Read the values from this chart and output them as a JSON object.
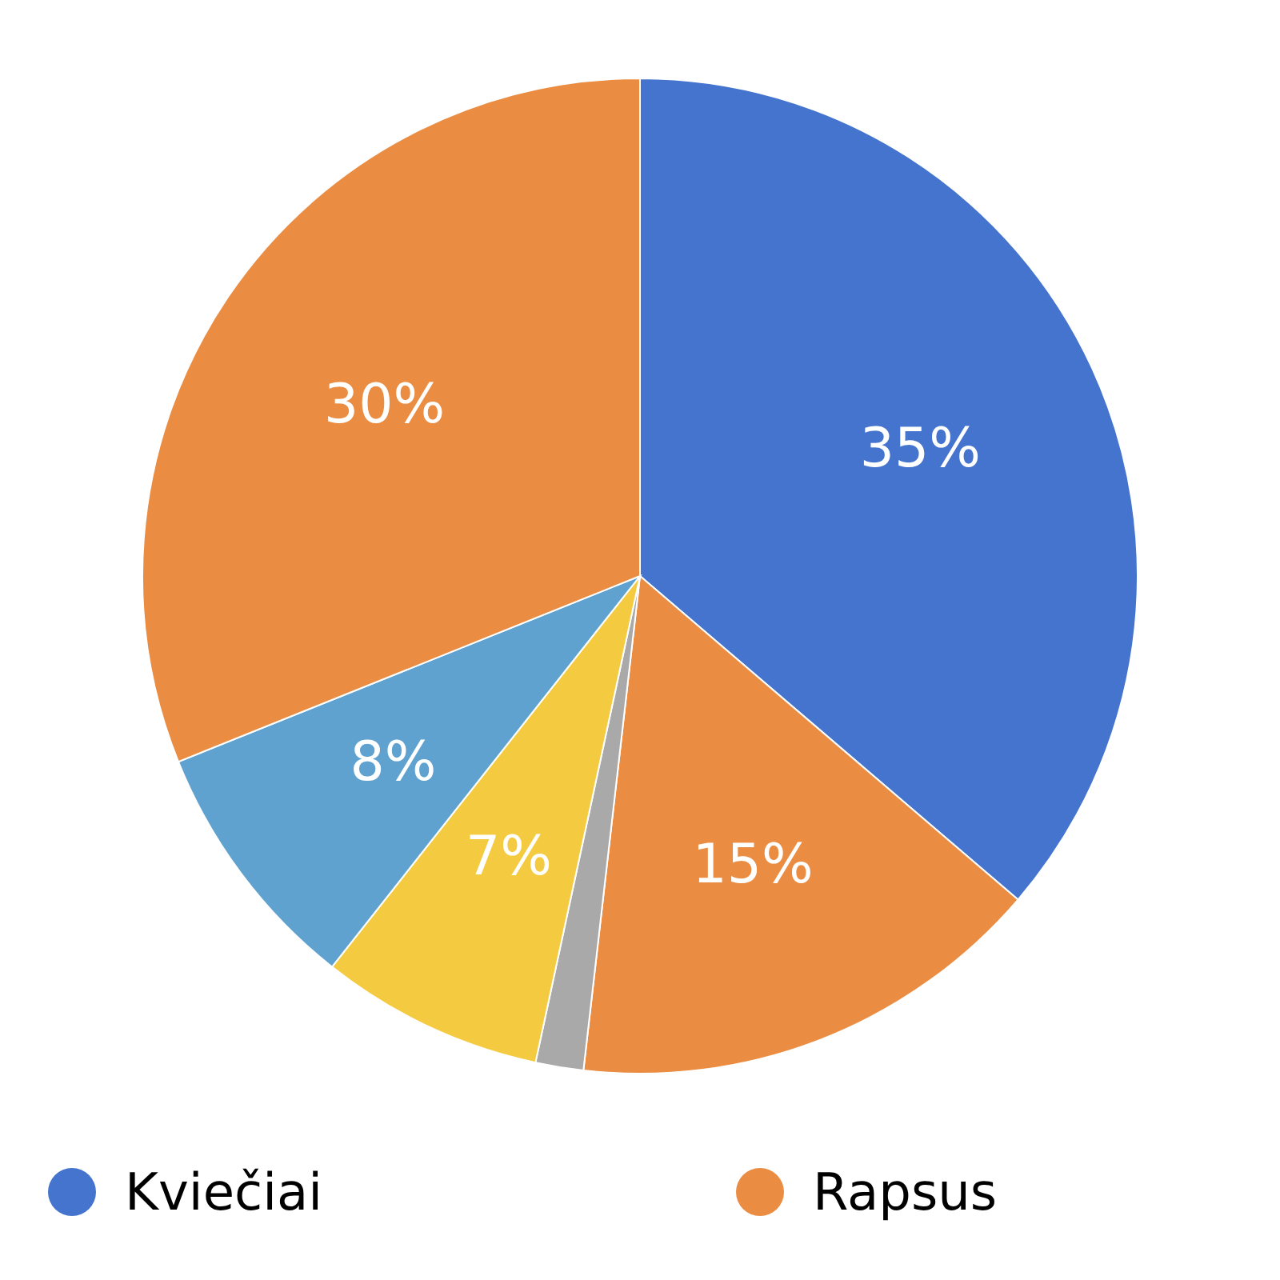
{
  "chart_data": {
    "type": "pie",
    "categories": [
      "Kviečiai",
      "Rapsus",
      null,
      null,
      null,
      null
    ],
    "values": [
      35,
      15,
      1.5,
      7,
      8,
      30
    ],
    "colors": [
      "#4474cd",
      "#ea8c42",
      "#a9a9a9",
      "#f4cb40",
      "#5fa2d0",
      "#ea8c42"
    ],
    "value_labels": [
      "35%",
      "15%",
      null,
      "7%",
      "8%",
      "30%"
    ],
    "legend": "bottom"
  }
}
